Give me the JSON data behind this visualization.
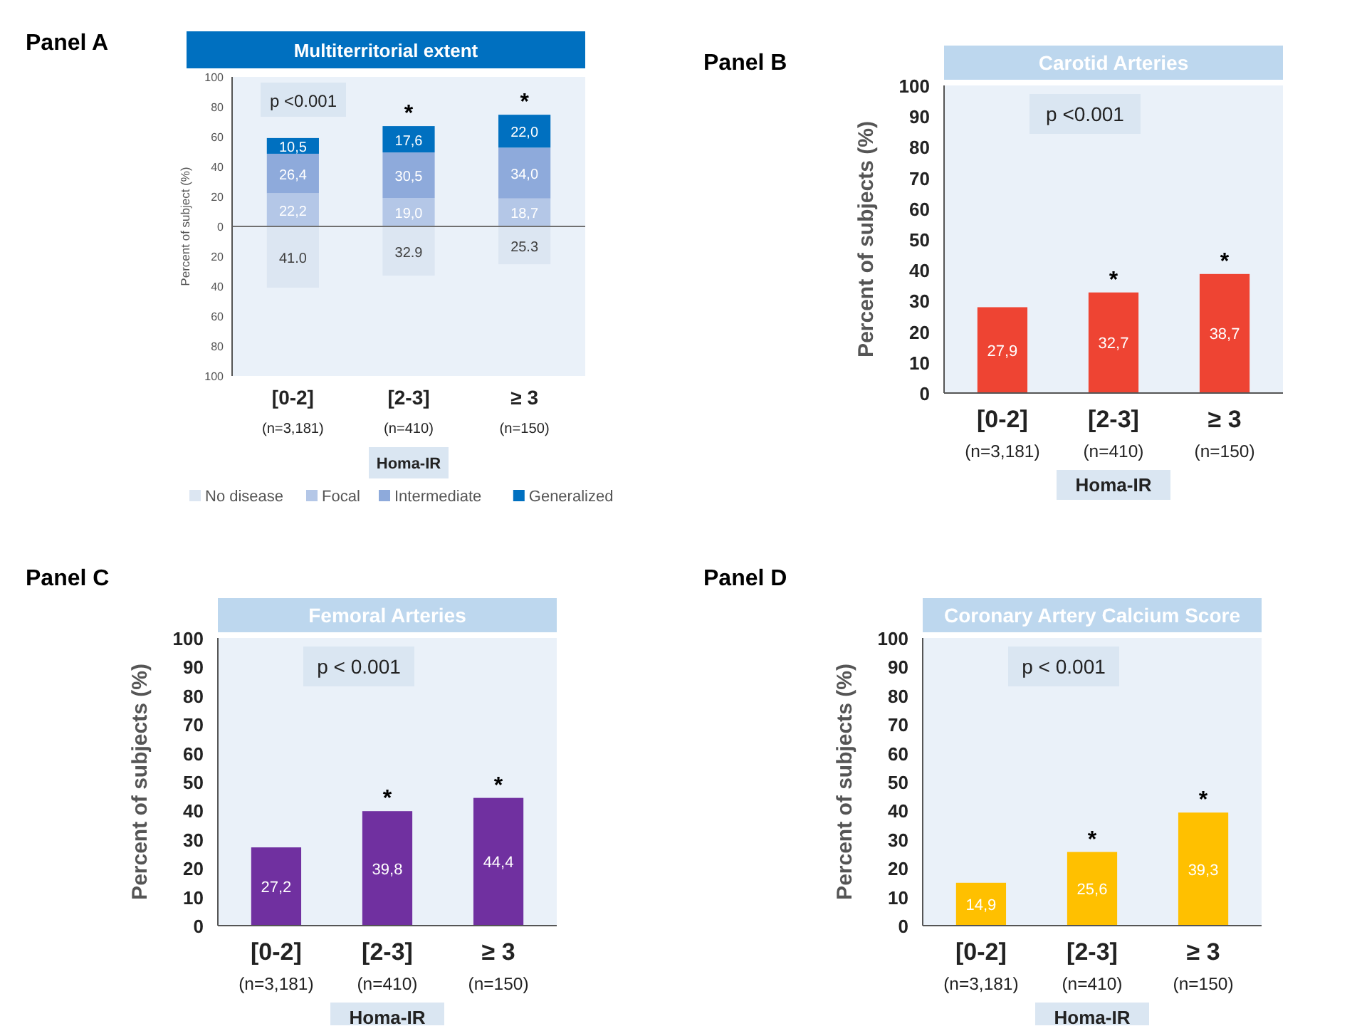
{
  "chart_data": [
    {
      "type": "bar",
      "title": "Multiterritorial extent",
      "ylabel": "Percent of subject (%)",
      "xlabel": "Homa-IR",
      "stacked": true,
      "legend": "bottom",
      "categories": [
        "[0-2]\n(n=3,181)",
        "[2-3]\n(n=410)",
        "≥ 3\n(n=150)"
      ],
      "ylim": [
        -100,
        100
      ],
      "yticks": [
        {
          "value": -100,
          "label": "100"
        },
        {
          "value": -80,
          "label": "80"
        },
        {
          "value": -60,
          "label": "60"
        },
        {
          "value": -40,
          "label": "40"
        },
        {
          "value": -20,
          "label": "20"
        },
        0,
        20,
        40,
        60,
        80,
        100
      ],
      "series": [
        {
          "name": "No disease",
          "color": "#dce6f2",
          "values": [
            41.0,
            32.9,
            25.3
          ],
          "base": [
            -41.0,
            -32.9,
            -25.3
          ],
          "value_labels": [
            "41.0",
            "32.9",
            "25.3"
          ]
        },
        {
          "name": "Focal",
          "color": "#b4c7e7",
          "values": [
            22.2,
            19.0,
            18.7
          ],
          "value_labels": [
            "22,2",
            "19,0",
            "18,7"
          ]
        },
        {
          "name": "Intermediate",
          "color": "#8eaadb",
          "values": [
            26.4,
            30.5,
            34.0
          ],
          "value_labels": [
            "26,4",
            "30,5",
            "34,0"
          ]
        },
        {
          "name": "Generalized",
          "color": "#0070c0",
          "values": [
            10.5,
            17.6,
            22.0
          ],
          "value_labels": [
            "10,5",
            "17,6",
            "22,0"
          ]
        }
      ],
      "annotations": [
        "Panel A",
        "p <0.001",
        {
          "text": "*",
          "x": "[2-3]\n(n=410)",
          "y": 67.1
        },
        {
          "text": "*",
          "x": "≥ 3\n(n=150)",
          "y": 74.7
        }
      ]
    },
    {
      "type": "bar",
      "title": "Carotid Arteries",
      "ylabel": "Percent of subjects (%)",
      "xlabel": "Homa-IR",
      "categories": [
        "[0-2]\n(n=3,181)",
        "[2-3]\n(n=410)",
        "≥ 3\n(n=150)"
      ],
      "ylim": [
        0,
        100
      ],
      "yticks": [
        0,
        10,
        20,
        30,
        40,
        50,
        60,
        70,
        80,
        90,
        100
      ],
      "series": [
        {
          "color": "#ee4433",
          "values": [
            27.9,
            32.7,
            38.7
          ],
          "value_labels": [
            "27,9",
            "32,7",
            "38,7"
          ]
        }
      ],
      "annotations": [
        "Panel B",
        "p <0.001",
        {
          "text": "*",
          "x": "[2-3]\n(n=410)",
          "y": 32.7
        },
        {
          "text": "*",
          "x": "≥ 3\n(n=150)",
          "y": 38.7
        }
      ]
    },
    {
      "type": "bar",
      "title": "Femoral Arteries",
      "ylabel": "Percent of subjects (%)",
      "xlabel": "Homa-IR",
      "categories": [
        "[0-2]\n(n=3,181)",
        "[2-3]\n(n=410)",
        "≥ 3\n(n=150)"
      ],
      "ylim": [
        0,
        100
      ],
      "yticks": [
        0,
        10,
        20,
        30,
        40,
        50,
        60,
        70,
        80,
        90,
        100
      ],
      "series": [
        {
          "color": "#7030a0",
          "values": [
            27.2,
            39.8,
            44.4
          ],
          "value_labels": [
            "27,2",
            "39,8",
            "44,4"
          ]
        }
      ],
      "annotations": [
        "Panel C",
        "p < 0.001",
        {
          "text": "*",
          "x": "[2-3]\n(n=410)",
          "y": 39.8
        },
        {
          "text": "*",
          "x": "≥ 3\n(n=150)",
          "y": 44.4
        }
      ]
    },
    {
      "type": "bar",
      "title": "Coronary Artery Calcium Score",
      "ylabel": "Percent of subjects (%)",
      "xlabel": "Homa-IR",
      "categories": [
        "[0-2]\n(n=3,181)",
        "[2-3]\n(n=410)",
        "≥ 3\n(n=150)"
      ],
      "ylim": [
        0,
        100
      ],
      "yticks": [
        0,
        10,
        20,
        30,
        40,
        50,
        60,
        70,
        80,
        90,
        100
      ],
      "series": [
        {
          "color": "#ffc000",
          "values": [
            14.9,
            25.6,
            39.3
          ],
          "value_labels": [
            "14,9",
            "25,6",
            "39,3"
          ]
        }
      ],
      "annotations": [
        "Panel D",
        "p < 0.001",
        {
          "text": "*",
          "x": "[2-3]\n(n=410)",
          "y": 25.6
        },
        {
          "text": "*",
          "x": "≥ 3\n(n=150)",
          "y": 39.3
        }
      ]
    }
  ]
}
